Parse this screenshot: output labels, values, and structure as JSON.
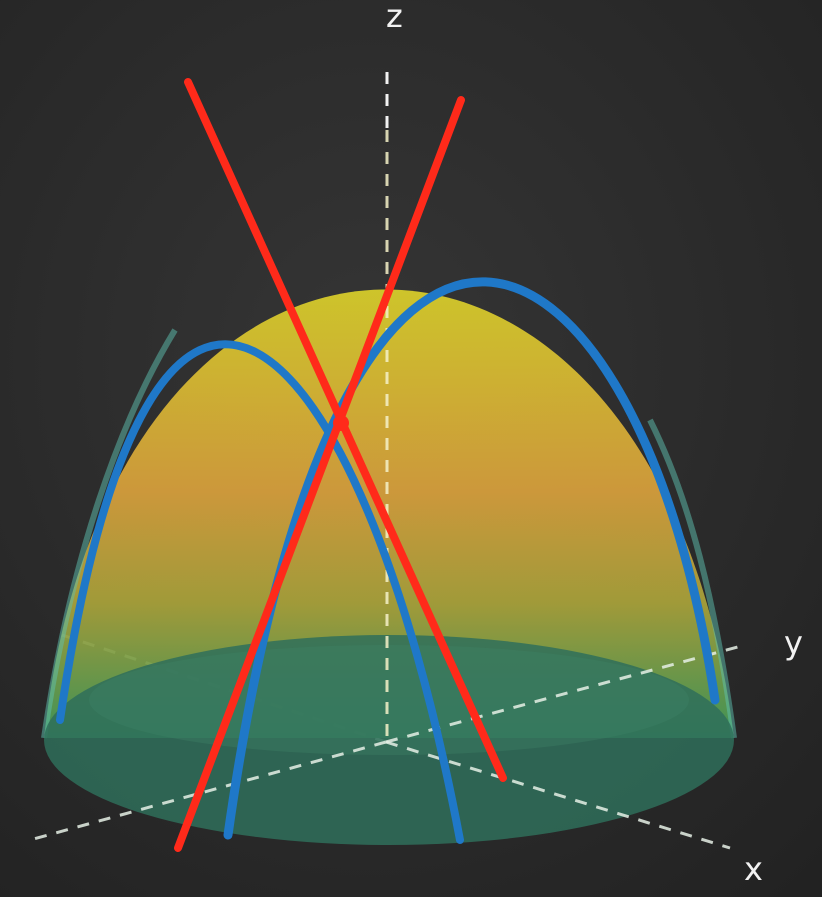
{
  "axes": {
    "z_label": "z",
    "y_label": "y",
    "x_label": "x"
  },
  "colors": {
    "chalkboard": "#2b2b2b",
    "surface_top": "#d2c22a",
    "surface_mid": "#d99a3a",
    "surface_low": "#4f9a4a",
    "base_disk": "#2f6f5a",
    "parabola_curve": "#1f78c8",
    "tangent_line": "#ff2a1a",
    "axis_dash": "#e6f0e6"
  },
  "icons": {
    "surface": "paraboloid-surface",
    "curves": "parabola-trace-curves",
    "lines": "tangent-lines"
  }
}
